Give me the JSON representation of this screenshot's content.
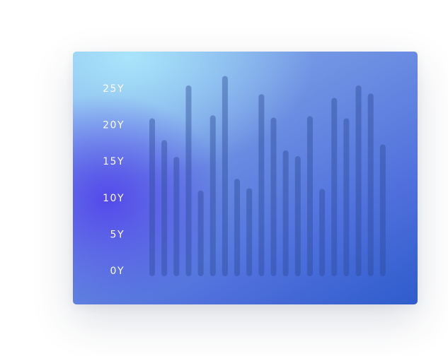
{
  "chart_data": {
    "type": "bar",
    "title": "",
    "xlabel": "",
    "ylabel": "",
    "ylim": [
      0,
      25
    ],
    "y_ticks": [
      {
        "value": 0,
        "label": "0Y"
      },
      {
        "value": 5,
        "label": "5Y"
      },
      {
        "value": 10,
        "label": "10Y"
      },
      {
        "value": 15,
        "label": "15Y"
      },
      {
        "value": 20,
        "label": "20Y"
      },
      {
        "value": 25,
        "label": "25Y"
      }
    ],
    "grid": false,
    "legend": "none",
    "series": [
      {
        "values": [
          20.5,
          17.5,
          15.2,
          25.0,
          10.6,
          20.9,
          26.3,
          12.2,
          10.9,
          23.8,
          20.6,
          16.1,
          15.3,
          20.8,
          10.8,
          23.3,
          20.5,
          25.0,
          23.9,
          16.9
        ]
      }
    ],
    "colors": {
      "bar": "#2d4b96",
      "tick_label": "#ffffff",
      "background_accent": "#5246eb",
      "background_highlight": "#a8e4fa",
      "background_base": "#2f5ccc"
    }
  }
}
